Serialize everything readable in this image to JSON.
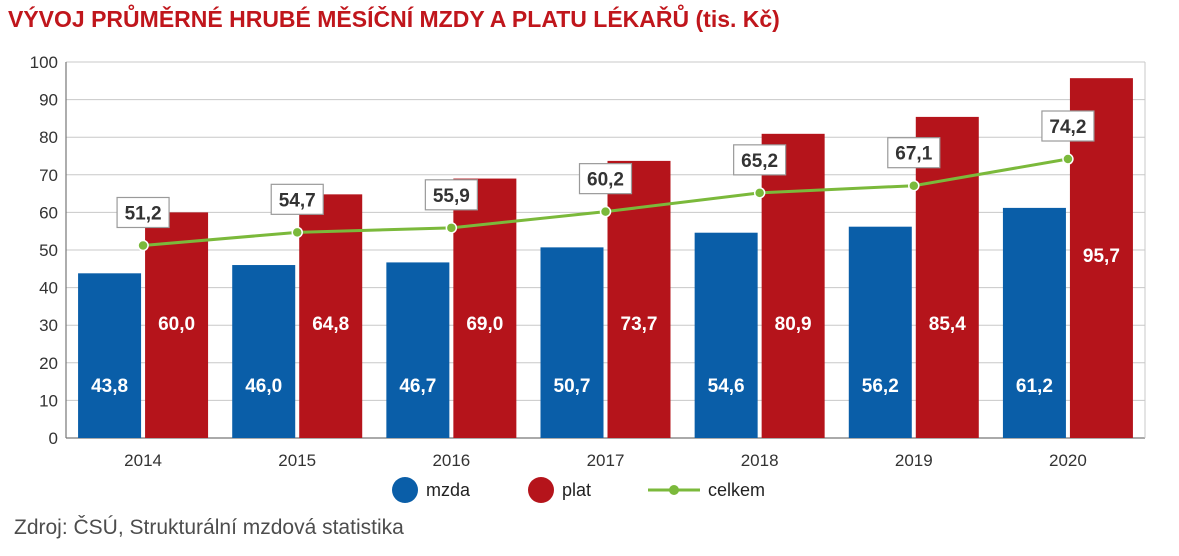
{
  "chart_data": {
    "type": "bar",
    "title": "VÝVOJ PRŮMĚRNÉ HRUBÉ MĚSÍČNÍ MZDY A PLATU LÉKAŘŮ (tis. Kč)",
    "categories": [
      "2014",
      "2015",
      "2016",
      "2017",
      "2018",
      "2019",
      "2020"
    ],
    "series": [
      {
        "name": "mzda",
        "type": "bar",
        "color": "#0a5ea8",
        "values": [
          43.8,
          46.0,
          46.7,
          50.7,
          54.6,
          56.2,
          61.2
        ],
        "labels": [
          "43,8",
          "46,0",
          "46,7",
          "50,7",
          "54,6",
          "56,2",
          "61,2"
        ]
      },
      {
        "name": "plat",
        "type": "bar",
        "color": "#b5141b",
        "values": [
          60.0,
          64.8,
          69.0,
          73.7,
          80.9,
          85.4,
          95.7
        ],
        "labels": [
          "60,0",
          "64,8",
          "69,0",
          "73,7",
          "80,9",
          "85,4",
          "95,7"
        ]
      },
      {
        "name": "celkem",
        "type": "line",
        "color": "#7bb93b",
        "values": [
          51.2,
          54.7,
          55.9,
          60.2,
          65.2,
          67.1,
          74.2
        ],
        "labels": [
          "51,2",
          "54,7",
          "55,9",
          "60,2",
          "65,2",
          "67,1",
          "74,2"
        ]
      }
    ],
    "ylim": [
      0,
      100
    ],
    "yticks": [
      "0",
      "10",
      "20",
      "30",
      "40",
      "50",
      "60",
      "70",
      "80",
      "90",
      "100"
    ],
    "grid": true,
    "legend_position": "bottom"
  },
  "source": "Zdroj: ČSÚ, Strukturální mzdová statistika"
}
